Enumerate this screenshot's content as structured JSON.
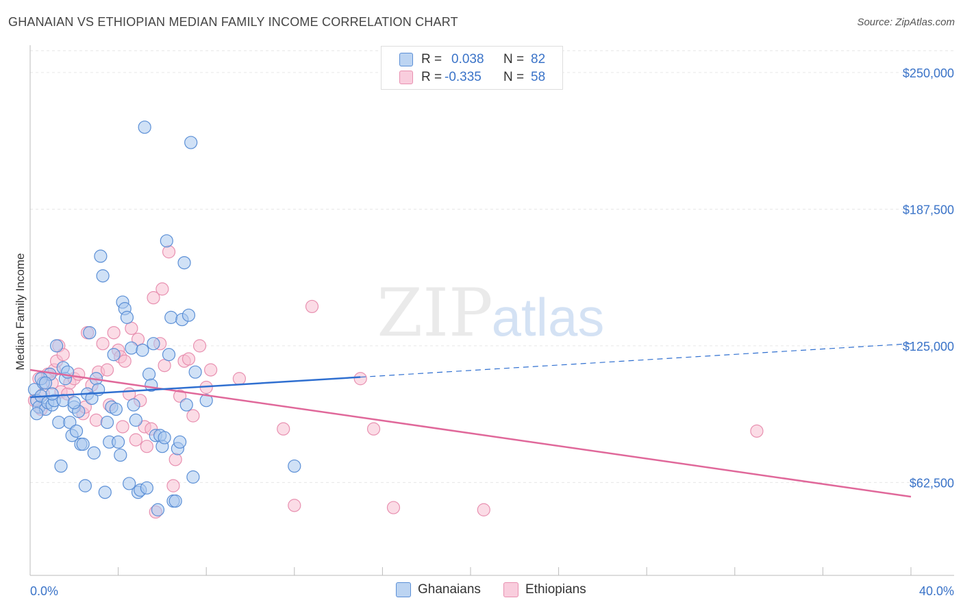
{
  "title": "GHANAIAN VS ETHIOPIAN MEDIAN FAMILY INCOME CORRELATION CHART",
  "source": "Source: ZipAtlas.com",
  "watermark": {
    "zip": "ZIP",
    "atlas": "atlas"
  },
  "legend": {
    "rows": [
      {
        "r_label": "R =",
        "r_value": "0.038",
        "n_label": "N =",
        "n_value": "82"
      },
      {
        "r_label": "R =",
        "r_value": "-0.335",
        "n_label": "N =",
        "n_value": "58"
      }
    ]
  },
  "bottom_legend": {
    "ghanaians": "Ghanaians",
    "ethiopians": "Ethiopians"
  },
  "colors": {
    "ghanaians_fill": "#a9c8ef",
    "ghanaians_stroke": "#5b8fd6",
    "ghanaians_line": "#2f6fd0",
    "ethiopians_fill": "#f7bfd2",
    "ethiopians_stroke": "#e890b0",
    "ethiopians_line": "#e0689a",
    "axis_label": "#3a73c8",
    "grid": "#e6e6e6"
  },
  "chart_data": {
    "type": "scatter",
    "title": "GHANAIAN VS ETHIOPIAN MEDIAN FAMILY INCOME CORRELATION CHART",
    "xlabel": "",
    "ylabel": "Median Family Income",
    "xlim": [
      0,
      40
    ],
    "ylim": [
      20000,
      260000
    ],
    "x_tick_labels": {
      "left": "0.0%",
      "right": "40.0%"
    },
    "y_ticks": [
      {
        "value": 250000,
        "label": "$250,000"
      },
      {
        "value": 187500,
        "label": "$187,500"
      },
      {
        "value": 125000,
        "label": "$125,000"
      },
      {
        "value": 62500,
        "label": "$62,500"
      }
    ],
    "series": [
      {
        "name": "Ghanaians",
        "r": 0.038,
        "n": 82,
        "trend": {
          "x0": 0,
          "y0": 101500,
          "x1": 40,
          "y1": 126000,
          "solid_until_x": 15
        },
        "points": [
          [
            0.2,
            105000
          ],
          [
            0.3,
            100000
          ],
          [
            0.4,
            97000
          ],
          [
            0.5,
            102000
          ],
          [
            0.6,
            108000
          ],
          [
            0.7,
            96000
          ],
          [
            0.8,
            99000
          ],
          [
            0.9,
            112000
          ],
          [
            1.0,
            98000
          ],
          [
            1.1,
            100000
          ],
          [
            1.2,
            125000
          ],
          [
            1.3,
            90000
          ],
          [
            1.4,
            70000
          ],
          [
            1.5,
            115000
          ],
          [
            1.6,
            110000
          ],
          [
            1.7,
            113000
          ],
          [
            1.8,
            90000
          ],
          [
            1.9,
            84000
          ],
          [
            2.0,
            97000
          ],
          [
            2.1,
            86000
          ],
          [
            2.2,
            95000
          ],
          [
            2.3,
            80000
          ],
          [
            2.4,
            80000
          ],
          [
            2.5,
            61000
          ],
          [
            2.6,
            103000
          ],
          [
            2.7,
            131000
          ],
          [
            2.8,
            101000
          ],
          [
            2.9,
            76000
          ],
          [
            3.0,
            110000
          ],
          [
            3.1,
            105000
          ],
          [
            3.2,
            166000
          ],
          [
            3.3,
            157000
          ],
          [
            3.4,
            58000
          ],
          [
            3.5,
            90000
          ],
          [
            3.6,
            81000
          ],
          [
            3.7,
            97000
          ],
          [
            3.8,
            121000
          ],
          [
            3.9,
            96000
          ],
          [
            4.0,
            81000
          ],
          [
            4.1,
            75000
          ],
          [
            4.2,
            145000
          ],
          [
            4.3,
            142000
          ],
          [
            4.4,
            138000
          ],
          [
            4.5,
            62000
          ],
          [
            4.6,
            124000
          ],
          [
            4.7,
            98000
          ],
          [
            4.8,
            91000
          ],
          [
            4.9,
            58000
          ],
          [
            5.0,
            59000
          ],
          [
            5.1,
            123000
          ],
          [
            5.2,
            225000
          ],
          [
            5.3,
            60000
          ],
          [
            5.4,
            112000
          ],
          [
            5.5,
            107000
          ],
          [
            5.6,
            126000
          ],
          [
            5.7,
            84000
          ],
          [
            5.8,
            50000
          ],
          [
            5.9,
            84000
          ],
          [
            6.0,
            79000
          ],
          [
            6.1,
            83000
          ],
          [
            6.2,
            173000
          ],
          [
            6.3,
            121000
          ],
          [
            6.4,
            138000
          ],
          [
            6.5,
            54000
          ],
          [
            6.6,
            54000
          ],
          [
            6.7,
            78000
          ],
          [
            6.8,
            81000
          ],
          [
            6.9,
            137000
          ],
          [
            7.0,
            163000
          ],
          [
            7.1,
            98000
          ],
          [
            7.2,
            139000
          ],
          [
            7.3,
            218000
          ],
          [
            7.4,
            65000
          ],
          [
            7.5,
            113000
          ],
          [
            8.0,
            100000
          ],
          [
            12.0,
            70000
          ],
          [
            0.3,
            94000
          ],
          [
            0.5,
            110000
          ],
          [
            0.7,
            108000
          ],
          [
            1.0,
            103000
          ],
          [
            1.5,
            100000
          ],
          [
            2.0,
            99000
          ]
        ]
      },
      {
        "name": "Ethiopians",
        "r": -0.335,
        "n": 58,
        "trend": {
          "x0": 0,
          "y0": 114000,
          "x1": 40,
          "y1": 56000
        },
        "points": [
          [
            0.2,
            100000
          ],
          [
            0.4,
            110000
          ],
          [
            0.5,
            96000
          ],
          [
            0.6,
            103000
          ],
          [
            0.8,
            112000
          ],
          [
            1.0,
            108000
          ],
          [
            1.1,
            114000
          ],
          [
            1.2,
            118000
          ],
          [
            1.3,
            125000
          ],
          [
            1.4,
            104000
          ],
          [
            1.5,
            121000
          ],
          [
            1.7,
            103000
          ],
          [
            1.8,
            108000
          ],
          [
            2.0,
            110000
          ],
          [
            2.2,
            112000
          ],
          [
            2.4,
            94000
          ],
          [
            2.5,
            97000
          ],
          [
            2.6,
            131000
          ],
          [
            2.8,
            107000
          ],
          [
            3.0,
            91000
          ],
          [
            3.1,
            113000
          ],
          [
            3.3,
            126000
          ],
          [
            3.5,
            114000
          ],
          [
            3.6,
            98000
          ],
          [
            3.8,
            131000
          ],
          [
            4.0,
            123000
          ],
          [
            4.1,
            120000
          ],
          [
            4.2,
            88000
          ],
          [
            4.3,
            118000
          ],
          [
            4.5,
            103000
          ],
          [
            4.6,
            133000
          ],
          [
            4.8,
            82000
          ],
          [
            4.9,
            128000
          ],
          [
            5.0,
            100000
          ],
          [
            5.2,
            88000
          ],
          [
            5.3,
            79000
          ],
          [
            5.5,
            87000
          ],
          [
            5.6,
            147000
          ],
          [
            5.7,
            49000
          ],
          [
            5.9,
            126000
          ],
          [
            6.0,
            151000
          ],
          [
            6.1,
            116000
          ],
          [
            6.3,
            168000
          ],
          [
            6.5,
            61000
          ],
          [
            6.6,
            73000
          ],
          [
            6.8,
            102000
          ],
          [
            7.0,
            118000
          ],
          [
            7.2,
            119000
          ],
          [
            7.4,
            93000
          ],
          [
            7.7,
            125000
          ],
          [
            8.0,
            106000
          ],
          [
            8.2,
            114000
          ],
          [
            9.5,
            110000
          ],
          [
            11.5,
            87000
          ],
          [
            12.0,
            52000
          ],
          [
            12.8,
            143000
          ],
          [
            15.0,
            110000
          ],
          [
            15.6,
            87000
          ]
        ],
        "far_points": [
          [
            16.5,
            51000
          ],
          [
            20.6,
            50000
          ],
          [
            33.0,
            86000
          ]
        ]
      }
    ]
  }
}
